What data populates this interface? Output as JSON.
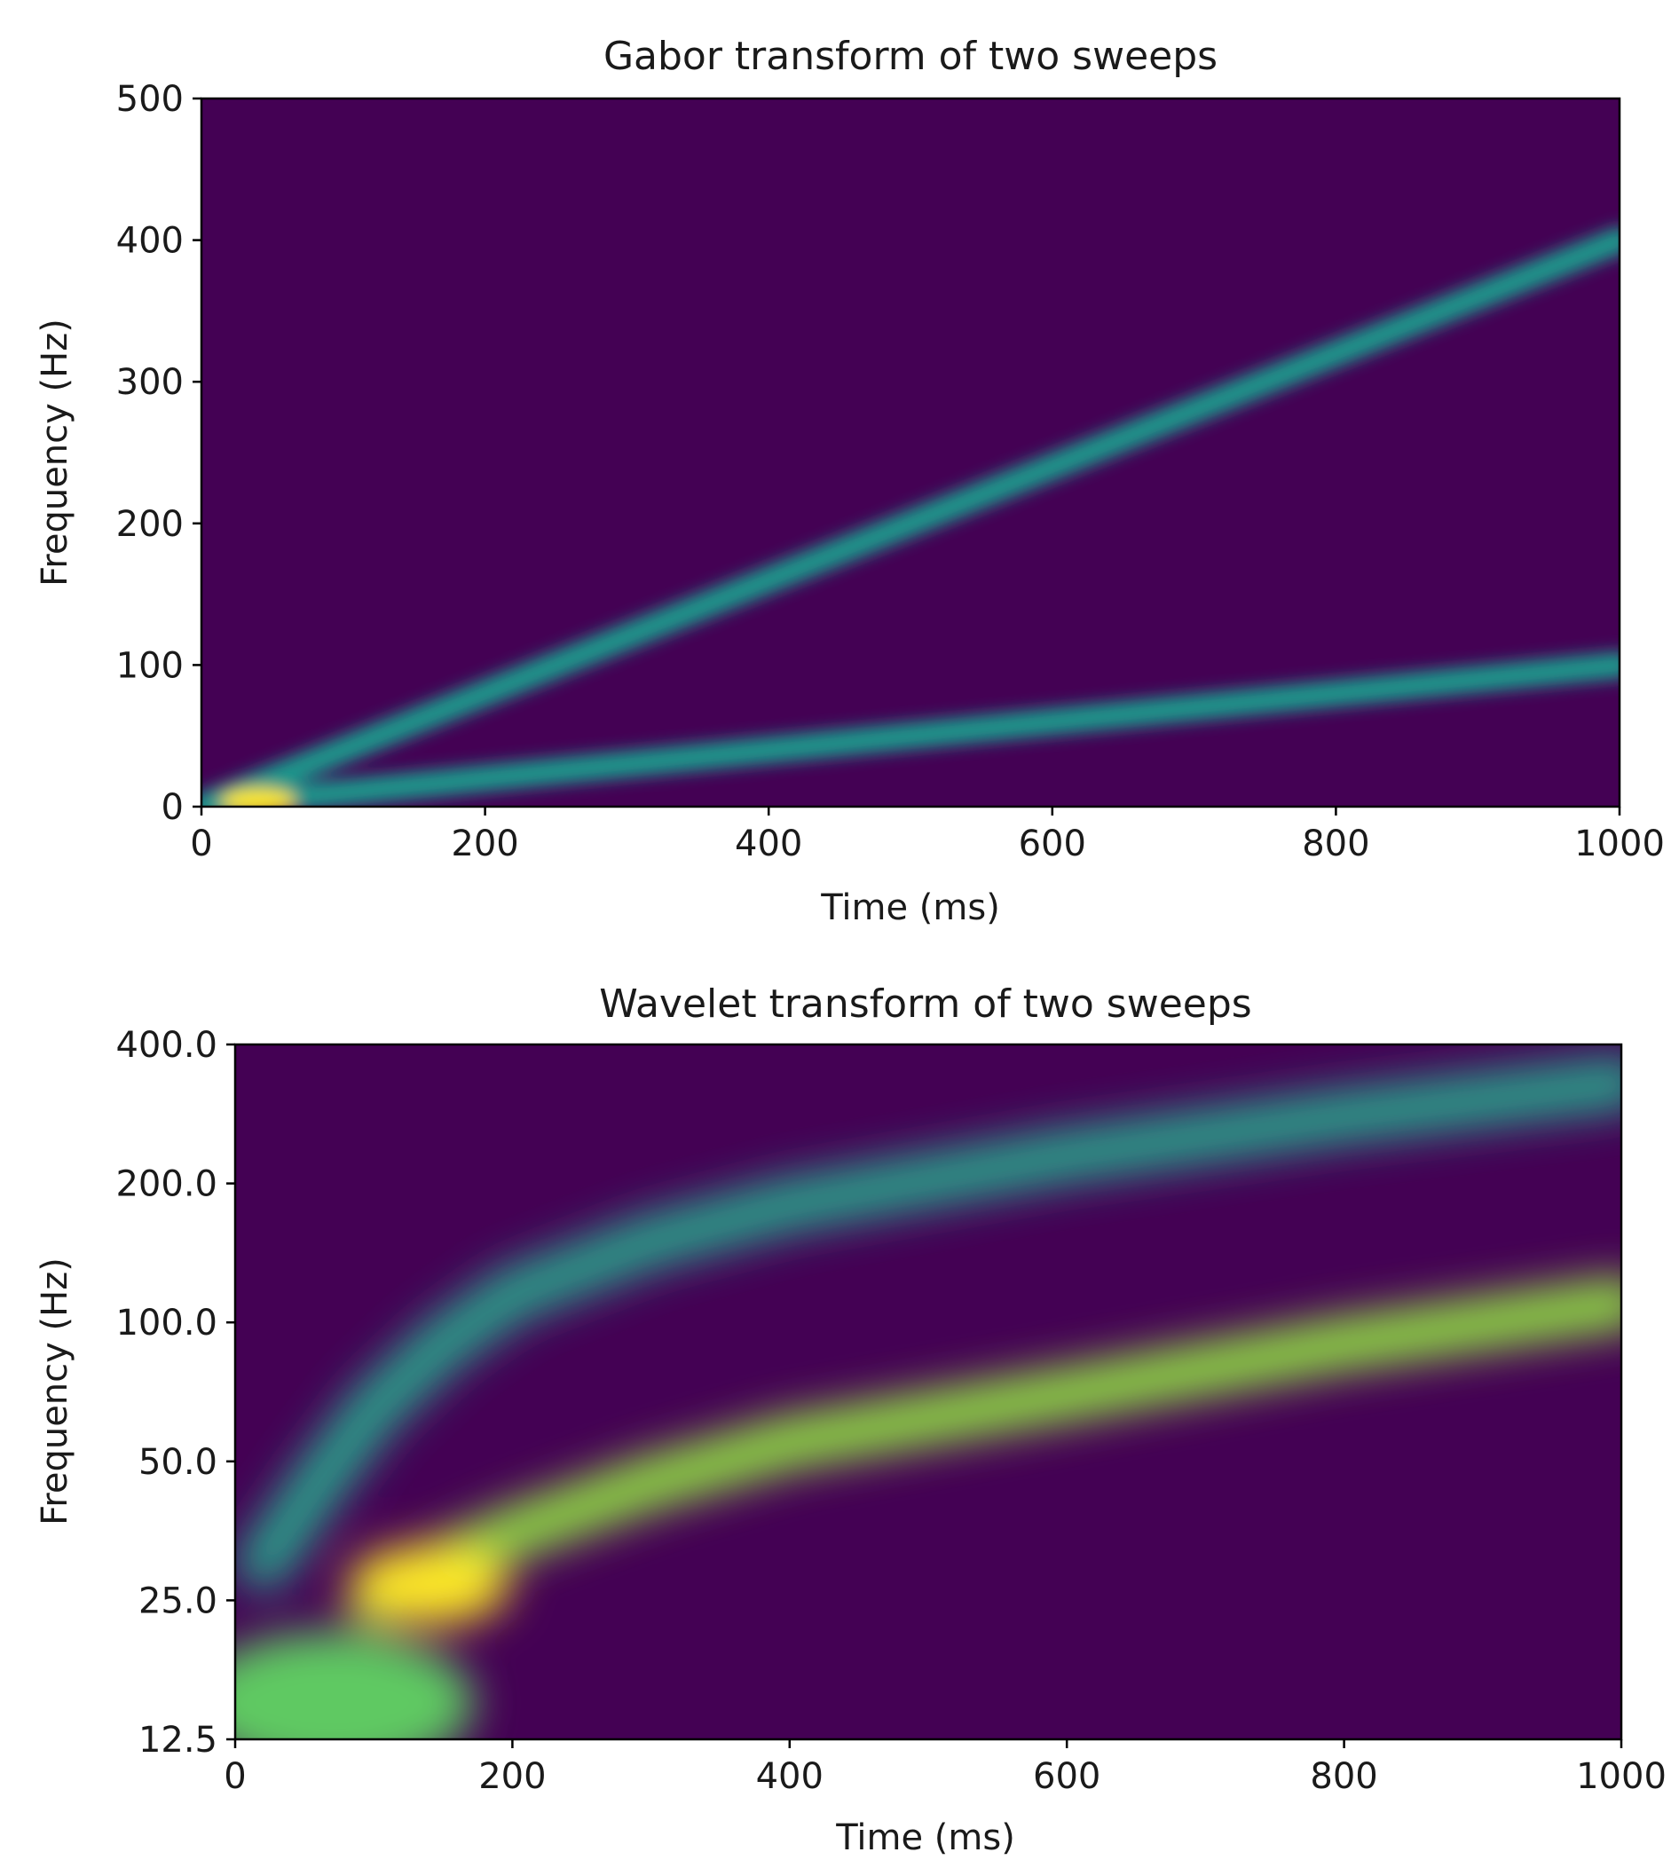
{
  "chart_data": [
    {
      "type": "heatmap",
      "title": "Gabor transform of two sweeps",
      "xlabel": "Time (ms)",
      "ylabel": "Frequency (Hz)",
      "xlim": [
        0,
        1000
      ],
      "ylim": [
        0,
        500
      ],
      "y_scale": "linear",
      "colormap": "viridis",
      "xticks": [
        0,
        200,
        400,
        600,
        800,
        1000
      ],
      "xtick_labels": [
        "0",
        "200",
        "400",
        "600",
        "800",
        "1000"
      ],
      "yticks": [
        0,
        100,
        200,
        300,
        400,
        500
      ],
      "ytick_labels": [
        "0",
        "100",
        "200",
        "300",
        "400",
        "500"
      ],
      "series": [
        {
          "x": [
            0,
            200,
            400,
            600,
            800,
            1000
          ],
          "y": [
            0,
            80,
            160,
            240,
            320,
            400
          ]
        },
        {
          "x": [
            0,
            200,
            400,
            600,
            800,
            1000
          ],
          "y": [
            0,
            20,
            40,
            60,
            80,
            100
          ]
        }
      ],
      "grid": false
    },
    {
      "type": "heatmap",
      "title": "Wavelet transform of two sweeps",
      "xlabel": "Time (ms)",
      "ylabel": "Frequency (Hz)",
      "xlim": [
        0,
        1000
      ],
      "ylim": [
        12.5,
        400
      ],
      "y_scale": "log",
      "colormap": "viridis",
      "xticks": [
        0,
        200,
        400,
        600,
        800,
        1000
      ],
      "xtick_labels": [
        "0",
        "200",
        "400",
        "600",
        "800",
        "1000"
      ],
      "yticks": [
        12.5,
        25,
        50,
        100,
        200,
        400
      ],
      "ytick_labels": [
        "12.5",
        "25.0",
        "50.0",
        "100.0",
        "200.0",
        "400.0"
      ],
      "series": [
        {
          "x": [
            20,
            60,
            100,
            150,
            200,
            300,
            400,
            600,
            800,
            1000
          ],
          "y": [
            30,
            45,
            65,
            90,
            115,
            150,
            180,
            230,
            280,
            330
          ]
        },
        {
          "x": [
            100,
            150,
            200,
            300,
            400,
            600,
            800,
            1000
          ],
          "y": [
            25,
            30,
            35,
            45,
            55,
            70,
            90,
            110
          ]
        }
      ],
      "grid": false
    }
  ]
}
